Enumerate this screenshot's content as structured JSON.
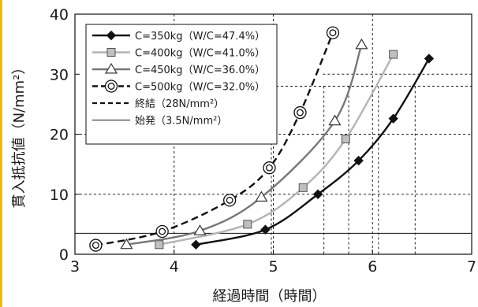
{
  "accent_strip_color": "#f5b800",
  "chart_data": {
    "type": "line",
    "xlabel": "経過時間（時間）",
    "ylabel": "貫入抵抗値（N/mm²）",
    "xlim": [
      3,
      7
    ],
    "ylim": [
      0,
      40
    ],
    "xticks": [
      3,
      4,
      5,
      6,
      7
    ],
    "yticks": [
      0,
      10,
      20,
      30,
      40
    ],
    "grid": "dashed",
    "legend_position": "top-left",
    "series": [
      {
        "name": "C=350kg（W/C=47.4%）",
        "marker": "diamond",
        "color": "#111111",
        "dash": "solid",
        "x": [
          4.22,
          4.92,
          5.45,
          5.86,
          6.21,
          6.57
        ],
        "y": [
          1.6,
          4.1,
          10.0,
          15.6,
          22.6,
          32.6
        ]
      },
      {
        "name": "C=400kg（W/C=41.0%）",
        "marker": "square",
        "color": "#b4b4b4",
        "dash": "solid",
        "x": [
          3.85,
          4.74,
          5.3,
          5.73,
          6.21
        ],
        "y": [
          1.6,
          5.0,
          11.1,
          19.2,
          33.3
        ]
      },
      {
        "name": "C=450kg（W/C=36.0%）",
        "marker": "triangle",
        "color": "#777777",
        "dash": "solid",
        "x": [
          3.52,
          4.26,
          4.88,
          5.62,
          5.89
        ],
        "y": [
          1.6,
          3.9,
          9.5,
          22.2,
          34.9
        ]
      },
      {
        "name": "C=500kg（W/C=32.0%）",
        "marker": "bullseye",
        "color": "#111111",
        "dash": "dashed",
        "x": [
          3.21,
          3.88,
          4.56,
          4.96,
          5.27,
          5.6
        ],
        "y": [
          1.5,
          3.8,
          9.0,
          14.4,
          23.6,
          36.9
        ]
      }
    ],
    "reference_lines": [
      {
        "name": "終結（28N/mm²）",
        "y": 28,
        "dash": "dashed",
        "color": "#111111"
      },
      {
        "name": "始発（3.5N/mm²）",
        "y": 3.5,
        "dash": "solid",
        "color": "#111111"
      }
    ],
    "crossing_lines": [
      {
        "label": "終結",
        "y": 28,
        "x": 4.98
      },
      {
        "label": "終結",
        "y": 28,
        "x": 5.51
      },
      {
        "label": "終結",
        "y": 28,
        "x": 5.76
      },
      {
        "label": "終結",
        "y": 28,
        "x": 6.06
      },
      {
        "label": "終結",
        "y": 28,
        "x": 6.43
      }
    ],
    "extra_grid": {
      "y": 30,
      "x_from": 5.5,
      "x_to": 7
    }
  }
}
